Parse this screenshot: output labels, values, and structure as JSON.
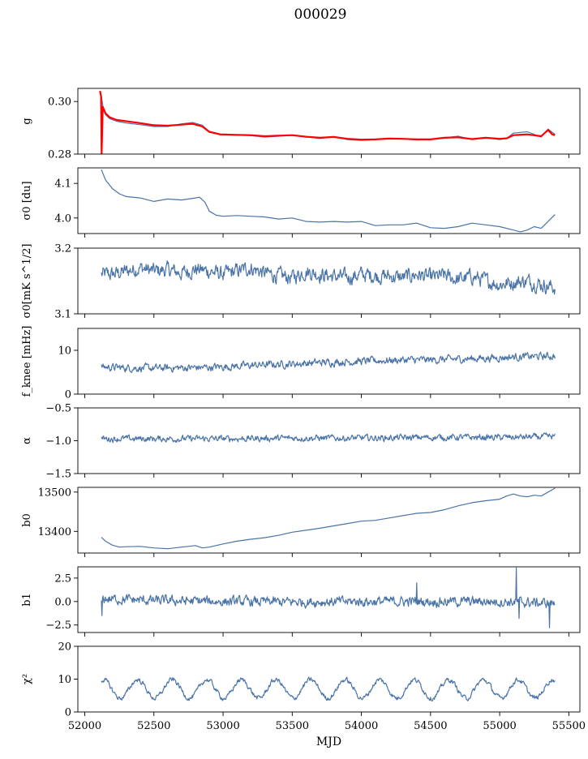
{
  "title": "000029",
  "chart_data": {
    "type": "line",
    "shared_x": {
      "label": "MJD",
      "range": [
        51950,
        55580
      ],
      "ticks": [
        52000,
        52500,
        53000,
        53500,
        54000,
        54500,
        55000,
        55500
      ]
    },
    "line_color": "#4a74a8",
    "overlay_color": "#ff0000",
    "panels": [
      {
        "key": "g",
        "ylabel": "g",
        "ylim": [
          0.28,
          0.305
        ],
        "yticks": [
          0.28,
          0.3
        ],
        "ytick_labels": [
          "0.28",
          "0.30"
        ],
        "series": [
          {
            "style": "blue",
            "x": [
              52120,
              52135,
              52150,
              52180,
              52230,
              52300,
              52400,
              52500,
              52600,
              52700,
              52780,
              52850,
              52900,
              52980,
              53100,
              53200,
              53300,
              53400,
              53500,
              53600,
              53700,
              53800,
              53900,
              54000,
              54100,
              54200,
              54300,
              54400,
              54500,
              54600,
              54700,
              54800,
              54900,
              55000,
              55050,
              55100,
              55200,
              55300,
              55350,
              55400
            ],
            "y": [
              0.302,
              0.297,
              0.295,
              0.2935,
              0.2925,
              0.2918,
              0.2912,
              0.2905,
              0.2905,
              0.2915,
              0.292,
              0.291,
              0.2885,
              0.2873,
              0.2872,
              0.287,
              0.2865,
              0.2868,
              0.2872,
              0.2865,
              0.286,
              0.2865,
              0.2855,
              0.2852,
              0.2855,
              0.2858,
              0.2857,
              0.2854,
              0.2855,
              0.2862,
              0.2868,
              0.2855,
              0.2862,
              0.2855,
              0.286,
              0.288,
              0.2885,
              0.2865,
              0.2895,
              0.2875
            ]
          },
          {
            "style": "red",
            "x": [
              52110,
              52118,
              52122,
              52130,
              52150,
              52180,
              52230,
              52300,
              52400,
              52500,
              52600,
              52700,
              52780,
              52850,
              52900,
              52980,
              53100,
              53200,
              53300,
              53400,
              53500,
              53600,
              53700,
              53800,
              53900,
              54000,
              54100,
              54200,
              54300,
              54400,
              54500,
              54600,
              54700,
              54800,
              54900,
              55000,
              55050,
              55100,
              55200,
              55300,
              55350,
              55380,
              55400
            ],
            "y": [
              0.304,
              0.302,
              0.28,
              0.298,
              0.2955,
              0.294,
              0.293,
              0.2925,
              0.2918,
              0.291,
              0.2908,
              0.2912,
              0.2915,
              0.2905,
              0.2885,
              0.2875,
              0.2873,
              0.2872,
              0.2868,
              0.287,
              0.2872,
              0.2866,
              0.2862,
              0.2865,
              0.2858,
              0.2855,
              0.2856,
              0.2859,
              0.2858,
              0.2856,
              0.2856,
              0.2862,
              0.2864,
              0.2857,
              0.2862,
              0.2858,
              0.286,
              0.2872,
              0.2875,
              0.2868,
              0.2892,
              0.2875,
              0.2872
            ]
          }
        ]
      },
      {
        "key": "sigma0_du",
        "ylabel": "σ0 [du]",
        "ylim": [
          3.955,
          4.145
        ],
        "yticks": [
          4.0,
          4.1
        ],
        "ytick_labels": [
          "4.0",
          "4.1"
        ],
        "series": [
          {
            "style": "blue",
            "x": [
              52120,
              52150,
              52200,
              52250,
              52300,
              52400,
              52500,
              52600,
              52700,
              52800,
              52830,
              52870,
              52900,
              52950,
              53000,
              53100,
              53200,
              53300,
              53400,
              53500,
              53600,
              53700,
              53800,
              53900,
              54000,
              54100,
              54200,
              54300,
              54400,
              54500,
              54600,
              54700,
              54800,
              54900,
              55000,
              55100,
              55150,
              55200,
              55250,
              55300,
              55400
            ],
            "y": [
              4.14,
              4.11,
              4.085,
              4.07,
              4.062,
              4.058,
              4.048,
              4.055,
              4.052,
              4.058,
              4.06,
              4.045,
              4.02,
              4.008,
              4.005,
              4.007,
              4.005,
              4.003,
              3.997,
              4.0,
              3.99,
              3.988,
              3.99,
              3.988,
              3.99,
              3.978,
              3.98,
              3.98,
              3.985,
              3.972,
              3.97,
              3.975,
              3.985,
              3.98,
              3.975,
              3.965,
              3.96,
              3.965,
              3.975,
              3.97,
              4.01
            ]
          }
        ]
      },
      {
        "key": "sigma0_mK",
        "ylabel": "σ0[mK s^1/2]",
        "ylim": [
          3.1,
          3.2
        ],
        "yticks": [
          3.1,
          3.2
        ],
        "ytick_labels": [
          "3.1",
          "3.2"
        ],
        "series": [
          {
            "style": "blue",
            "noisy": true,
            "amp": 0.012,
            "x": [
              52120,
              52200,
              52300,
              52400,
              52500,
              52600,
              52700,
              52800,
              52900,
              53000,
              53100,
              53200,
              53300,
              53400,
              53500,
              53600,
              53700,
              53800,
              53900,
              54000,
              54100,
              54200,
              54300,
              54400,
              54500,
              54600,
              54700,
              54800,
              54900,
              55000,
              55100,
              55200,
              55300,
              55400
            ],
            "y": [
              3.16,
              3.16,
              3.165,
              3.17,
              3.165,
              3.167,
              3.162,
              3.168,
              3.165,
              3.16,
              3.165,
              3.17,
              3.162,
              3.158,
              3.155,
              3.165,
              3.16,
              3.157,
              3.155,
              3.16,
              3.158,
              3.157,
              3.155,
              3.16,
              3.155,
              3.158,
              3.152,
              3.157,
              3.15,
              3.145,
              3.148,
              3.15,
              3.145,
              3.14
            ]
          }
        ]
      },
      {
        "key": "fknee",
        "ylabel": "f_knee [mHz]",
        "ylim": [
          0,
          15
        ],
        "yticks": [
          0,
          10
        ],
        "ytick_labels": [
          "0",
          "10"
        ],
        "series": [
          {
            "style": "blue",
            "noisy": true,
            "amp": 0.9,
            "x": [
              52120,
              52300,
              52500,
              52700,
              52900,
              53100,
              53300,
              53500,
              53700,
              53900,
              54100,
              54300,
              54500,
              54700,
              54900,
              55100,
              55300,
              55400
            ],
            "y": [
              6.2,
              6.0,
              5.9,
              6.0,
              6.1,
              6.4,
              6.7,
              6.9,
              7.2,
              7.4,
              7.6,
              7.8,
              7.8,
              8.0,
              8.2,
              8.5,
              8.6,
              8.7
            ]
          }
        ]
      },
      {
        "key": "alpha",
        "ylabel": "α",
        "ylim": [
          -1.5,
          -0.5
        ],
        "yticks": [
          -1.5,
          -1.0,
          -0.5
        ],
        "ytick_labels": [
          "−1.5",
          "−1.0",
          "−0.5"
        ],
        "series": [
          {
            "style": "blue",
            "noisy": true,
            "amp": 0.05,
            "x": [
              52120,
              52500,
              53000,
              53500,
              54000,
              54500,
              55000,
              55400
            ],
            "y": [
              -0.97,
              -0.97,
              -0.97,
              -0.96,
              -0.96,
              -0.95,
              -0.95,
              -0.94
            ]
          }
        ]
      },
      {
        "key": "b0",
        "ylabel": "b0",
        "ylim": [
          13345,
          13512
        ],
        "yticks": [
          13400,
          13500
        ],
        "ytick_labels": [
          "13400",
          "13500"
        ],
        "series": [
          {
            "style": "blue",
            "x": [
              52120,
              52150,
              52200,
              52250,
              52300,
              52400,
              52500,
              52600,
              52700,
              52800,
              52850,
              52900,
              53000,
              53100,
              53200,
              53300,
              53400,
              53500,
              53600,
              53700,
              53800,
              53900,
              54000,
              54100,
              54200,
              54300,
              54400,
              54500,
              54600,
              54700,
              54800,
              54900,
              55000,
              55050,
              55100,
              55150,
              55200,
              55250,
              55300,
              55400
            ],
            "y": [
              13385,
              13375,
              13365,
              13360,
              13361,
              13362,
              13358,
              13356,
              13360,
              13364,
              13358,
              13360,
              13368,
              13375,
              13380,
              13384,
              13390,
              13398,
              13403,
              13408,
              13414,
              13420,
              13426,
              13428,
              13434,
              13440,
              13446,
              13448,
              13455,
              13465,
              13473,
              13478,
              13482,
              13490,
              13495,
              13490,
              13488,
              13492,
              13490,
              13510
            ]
          }
        ]
      },
      {
        "key": "b1",
        "ylabel": "b1",
        "ylim": [
          -3.3,
          3.7
        ],
        "yticks": [
          -2.5,
          0.0,
          2.5
        ],
        "ytick_labels": [
          "−2.5",
          "0.0",
          "2.5"
        ],
        "series": [
          {
            "style": "blue",
            "noisy": true,
            "amp": 0.55,
            "x": [
              52120,
              52500,
              53000,
              53500,
              54000,
              54500,
              55000,
              55400
            ],
            "y": [
              0.3,
              0.1,
              0.0,
              -0.05,
              0.0,
              0.0,
              0.0,
              -0.2
            ],
            "spikes": [
              [
                52125,
                -1.5
              ],
              [
                54400,
                2.0
              ],
              [
                55120,
                3.6
              ],
              [
                55140,
                -1.8
              ],
              [
                55360,
                -2.8
              ]
            ]
          }
        ]
      },
      {
        "key": "chi2",
        "ylabel": "χ²",
        "ylim": [
          0,
          20
        ],
        "yticks": [
          0,
          10,
          20
        ],
        "ytick_labels": [
          "0",
          "10",
          "20"
        ],
        "series": [
          {
            "style": "blue",
            "noisy": true,
            "amp": 0.8,
            "periodic": {
              "mean": 7.0,
              "amp": 2.8,
              "period": 250,
              "phase": 52070
            },
            "x": [
              52120,
              55400
            ],
            "y": [
              7,
              7
            ]
          }
        ]
      }
    ]
  }
}
